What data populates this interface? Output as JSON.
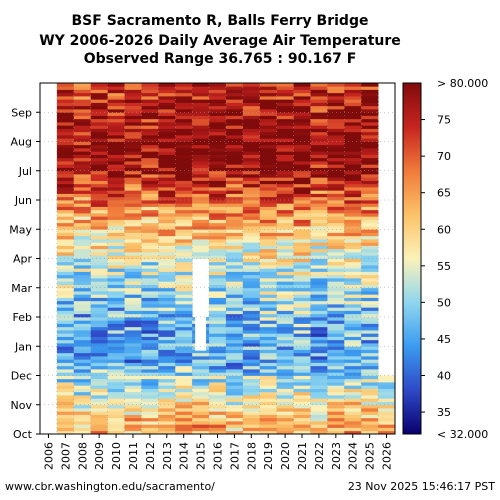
{
  "chart_data": {
    "type": "heatmap",
    "title_lines": [
      "BSF Sacramento R, Balls Ferry Bridge",
      "WY 2006-2026 Daily Average Air Temperature",
      "Observed Range 36.765 : 90.167 F"
    ],
    "x_categories": [
      "2006",
      "2007",
      "2008",
      "2009",
      "2010",
      "2011",
      "2012",
      "2013",
      "2014",
      "2015",
      "2016",
      "2017",
      "2018",
      "2019",
      "2020",
      "2021",
      "2022",
      "2023",
      "2024",
      "2025",
      "2026"
    ],
    "y_months": [
      "Oct",
      "Nov",
      "Dec",
      "Jan",
      "Feb",
      "Mar",
      "Apr",
      "May",
      "Jun",
      "Jul",
      "Aug",
      "Sep"
    ],
    "x_first_data_year": "2007",
    "last_year_data_through": "Nov",
    "missing_block": {
      "year": "2015",
      "from": "Feb",
      "to": "Apr"
    },
    "monthly_means_F": {
      "Oct": 63,
      "Nov": 54,
      "Dec": 46,
      "Jan": 46,
      "Feb": 49,
      "Mar": 53,
      "Apr": 58,
      "May": 65,
      "Jun": 73,
      "Jul": 80,
      "Aug": 78,
      "Sep": 74
    },
    "colorbar": {
      "min": 32,
      "max": 80,
      "tick_values": [
        35,
        40,
        45,
        50,
        55,
        60,
        65,
        70,
        75
      ],
      "tick_labels": [
        "35",
        "40",
        "45",
        "50",
        "55",
        "60",
        "65",
        "70",
        "75"
      ],
      "top_label": "> 80.000",
      "bottom_label": "< 32.000",
      "colors": [
        "#08006e",
        "#2f49c8",
        "#3a9bf0",
        "#8fd6ef",
        "#fbf2b9",
        "#fbc268",
        "#f07a3a",
        "#c7241f",
        "#800b0b"
      ]
    },
    "grid": true
  },
  "footer": {
    "left": "www.cbr.washington.edu/sacramento/",
    "right": "23 Nov 2025 15:46:17 PST"
  }
}
